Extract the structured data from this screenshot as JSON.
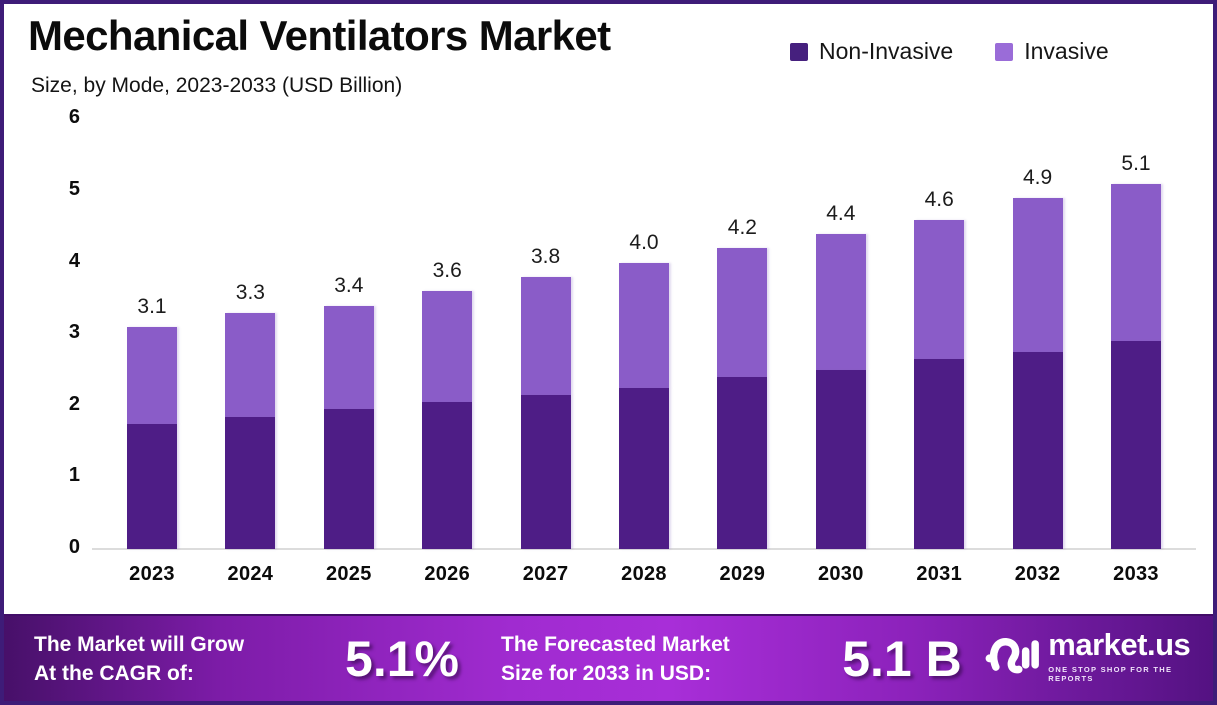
{
  "header": {
    "title": "Mechanical Ventilators Market",
    "subtitle": "Size, by Mode, 2023-2033 (USD Billion)"
  },
  "legend": [
    {
      "label": "Non-Invasive",
      "color": "#46207e"
    },
    {
      "label": "Invasive",
      "color": "#9a6cd8"
    }
  ],
  "chart_data": {
    "type": "bar",
    "stacked": true,
    "title": "Mechanical Ventilators Market Size, by Mode, 2023-2033 (USD Billion)",
    "categories": [
      "2023",
      "2024",
      "2025",
      "2026",
      "2027",
      "2028",
      "2029",
      "2030",
      "2031",
      "2032",
      "2033"
    ],
    "series": [
      {
        "name": "Non-Invasive",
        "color": "#4e1d86",
        "values": [
          1.75,
          1.85,
          1.95,
          2.05,
          2.15,
          2.25,
          2.4,
          2.5,
          2.65,
          2.75,
          2.9
        ]
      },
      {
        "name": "Invasive",
        "color": "#8a5cc8",
        "values": [
          1.35,
          1.45,
          1.45,
          1.55,
          1.65,
          1.75,
          1.8,
          1.9,
          1.95,
          2.15,
          2.2
        ]
      }
    ],
    "totals": [
      3.1,
      3.3,
      3.4,
      3.6,
      3.8,
      4.0,
      4.2,
      4.4,
      4.6,
      4.9,
      5.1
    ],
    "total_labels": [
      "3.1",
      "3.3",
      "3.4",
      "3.6",
      "3.8",
      "4.0",
      "4.2",
      "4.4",
      "4.6",
      "4.9",
      "5.1"
    ],
    "xlabel": "",
    "ylabel": "",
    "ylim": [
      0,
      6
    ],
    "yticks": [
      0,
      1,
      2,
      3,
      4,
      5,
      6
    ],
    "grid": false,
    "legend_position": "top-right"
  },
  "footer": {
    "cagr_line1": "The Market will Grow",
    "cagr_line2": "At the CAGR of:",
    "cagr_value": "5.1%",
    "forecast_line1": "The Forecasted Market",
    "forecast_line2": "Size for 2033 in USD:",
    "forecast_value": "5.1 B",
    "brand_name": "market.us",
    "brand_tagline": "ONE STOP SHOP FOR THE REPORTS"
  },
  "colors": {
    "border": "#3e1c78",
    "bar_dark": "#4e1d86",
    "bar_light": "#8a5cc8",
    "axis_line": "#dcdcdc",
    "footer_gradient": [
      "#471069",
      "#a02bd0",
      "#a82ed8",
      "#541282"
    ],
    "text_dark": "#0b0b0b",
    "text_white": "#ffffff"
  }
}
